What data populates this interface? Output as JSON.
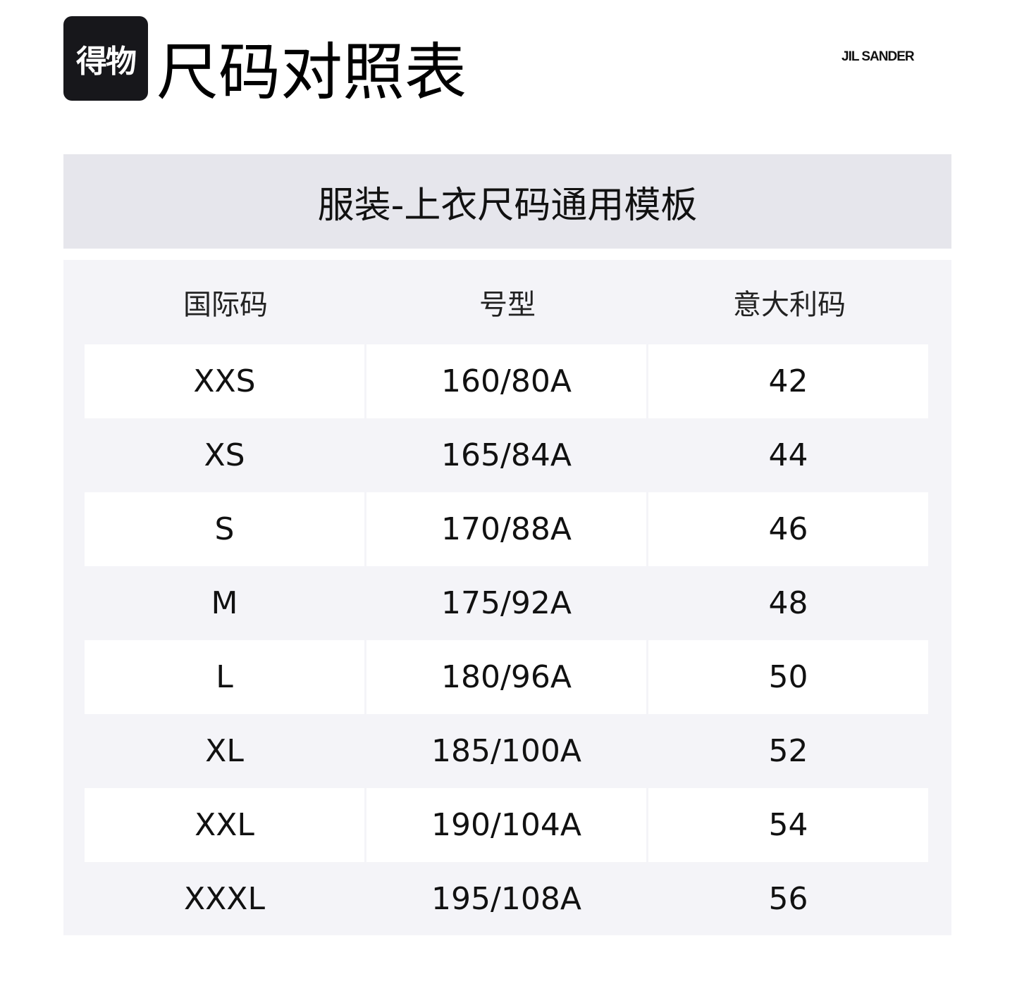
{
  "header": {
    "logo_text": "得物",
    "title": "尺码对照表",
    "brand": "JIL SANDER"
  },
  "band_title": "服装-上衣尺码通用模板",
  "table": {
    "columns": [
      "国际码",
      "号型",
      "意大利码"
    ],
    "rows": [
      [
        "XXS",
        "160/80A",
        "42"
      ],
      [
        "XS",
        "165/84A",
        "44"
      ],
      [
        "S",
        "170/88A",
        "46"
      ],
      [
        "M",
        "175/92A",
        "48"
      ],
      [
        "L",
        "180/96A",
        "50"
      ],
      [
        "XL",
        "185/100A",
        "52"
      ],
      [
        "XXL",
        "190/104A",
        "54"
      ],
      [
        "XXXL",
        "195/108A",
        "56"
      ]
    ]
  }
}
